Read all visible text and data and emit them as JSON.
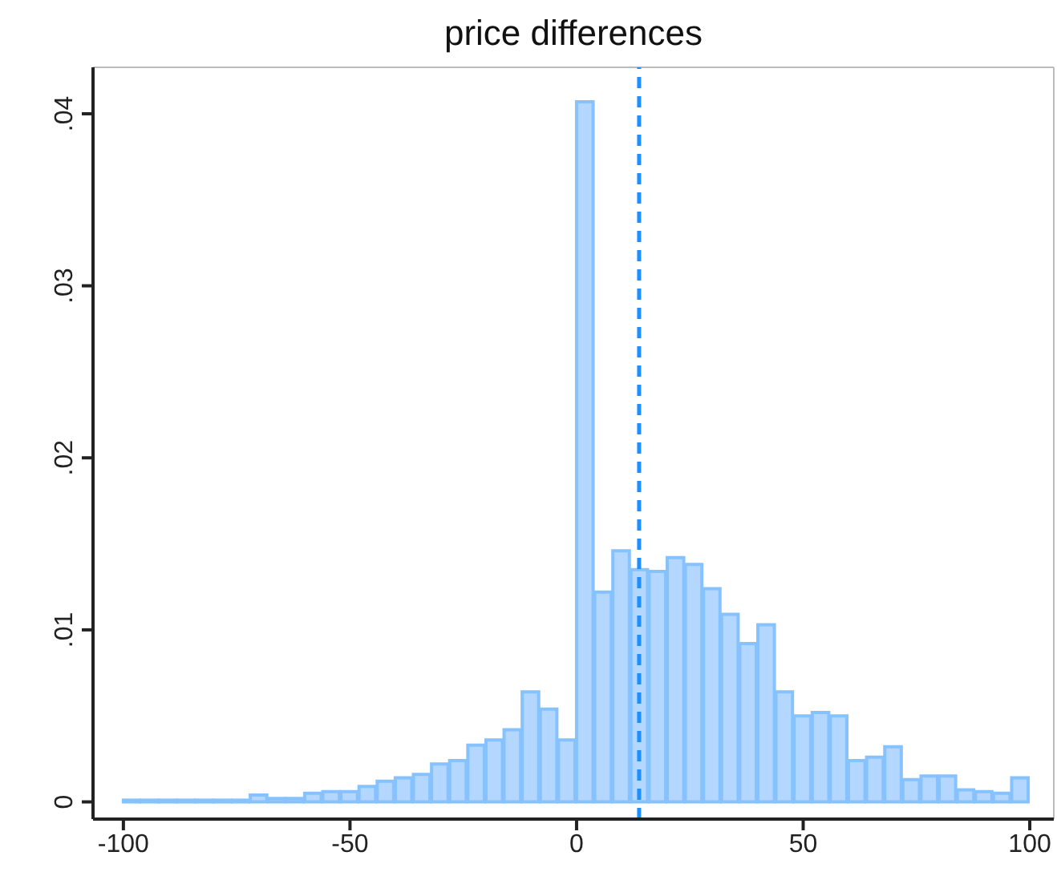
{
  "chart_data": {
    "type": "histogram",
    "title": "price differences",
    "bins": [
      -100,
      -96,
      -92,
      -88,
      -84,
      -80,
      -76,
      -72,
      -68,
      -64,
      -60,
      -56,
      -52,
      -48,
      -44,
      -40,
      -36,
      -32,
      -28,
      -24,
      -20,
      -16,
      -12,
      -8,
      -4,
      0,
      4,
      8,
      12,
      16,
      20,
      24,
      28,
      32,
      36,
      40,
      44,
      48,
      52,
      56,
      60,
      64,
      68,
      72,
      76,
      80,
      84,
      88,
      92,
      96,
      100
    ],
    "values": [
      0.0001,
      0.0001,
      0.0001,
      0.0001,
      0.0001,
      0.0001,
      0.0001,
      0.0004,
      0.0002,
      0.0002,
      0.0005,
      0.0006,
      0.0006,
      0.0009,
      0.0012,
      0.0014,
      0.0016,
      0.0022,
      0.0024,
      0.0033,
      0.0036,
      0.0042,
      0.0064,
      0.0054,
      0.0036,
      0.0407,
      0.0122,
      0.0146,
      0.0135,
      0.0134,
      0.0142,
      0.0138,
      0.0124,
      0.0109,
      0.0092,
      0.0103,
      0.0064,
      0.005,
      0.0052,
      0.005,
      0.0024,
      0.0026,
      0.0032,
      0.0013,
      0.0015,
      0.0015,
      0.0007,
      0.0006,
      0.0005,
      0.0014
    ],
    "color": "#b3d7ff",
    "xlim": [
      -106.7,
      105.3
    ],
    "xticks": [
      -100,
      -50,
      0,
      50,
      100
    ],
    "ylim": [
      -0.001,
      0.0427
    ],
    "yticks": [
      {
        "value": 0,
        "label": "0"
      },
      {
        "value": 0.01,
        "label": ".01"
      },
      {
        "value": 0.02,
        "label": ".02"
      },
      {
        "value": 0.03,
        "label": ".03"
      },
      {
        "value": 0.04,
        "label": ".04"
      }
    ],
    "ref_lines": [
      {
        "axis": "x",
        "value": 13.8,
        "color": "#1e8fff",
        "line_style": "dashed"
      }
    ],
    "grid": false
  }
}
